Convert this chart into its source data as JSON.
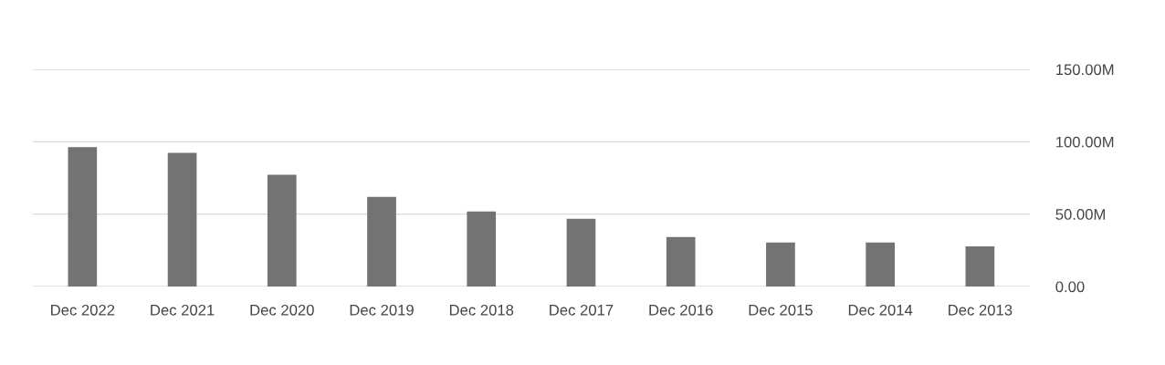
{
  "chart_data": {
    "type": "bar",
    "categories": [
      "Dec 2022",
      "Dec 2021",
      "Dec 2020",
      "Dec 2019",
      "Dec 2018",
      "Dec 2017",
      "Dec 2016",
      "Dec 2015",
      "Dec 2014",
      "Dec 2013"
    ],
    "values": [
      96.2,
      92.4,
      77.2,
      62,
      51.9,
      46.8,
      34.2,
      30.4,
      30.4,
      27.8
    ],
    "color": "#737373",
    "ylim": [
      0,
      150
    ],
    "yticks": [
      {
        "value": 0,
        "label": "0.00"
      },
      {
        "value": 50,
        "label": "50.00M"
      },
      {
        "value": 100,
        "label": "100.00M"
      },
      {
        "value": 150,
        "label": "150.00M"
      }
    ],
    "grid": "y",
    "legend": false
  }
}
